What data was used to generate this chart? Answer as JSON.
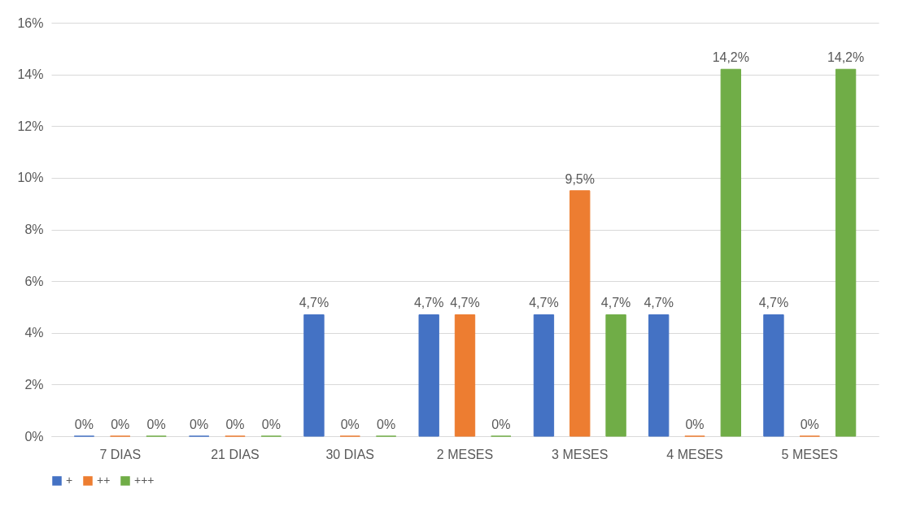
{
  "chart_data": {
    "type": "bar",
    "categories": [
      "7 DIAS",
      "21 DIAS",
      "30 DIAS",
      "2 MESES",
      "3 MESES",
      "4 MESES",
      "5 MESES"
    ],
    "series": [
      {
        "name": "+",
        "color": "#4472c4",
        "values": [
          0,
          0,
          4.7,
          4.7,
          4.7,
          4.7,
          4.7
        ],
        "value_labels": [
          "0%",
          "0%",
          "4,7%",
          "4,7%",
          "4,7%",
          "4,7%",
          "4,7%"
        ]
      },
      {
        "name": "++",
        "color": "#ed7d31",
        "values": [
          0,
          0,
          0,
          4.7,
          9.5,
          0,
          0
        ],
        "value_labels": [
          "0%",
          "0%",
          "0%",
          "4,7%",
          "9,5%",
          "0%",
          "0%"
        ]
      },
      {
        "name": "+++",
        "color": "#70ad47",
        "values": [
          0,
          0,
          0,
          0,
          4.7,
          14.2,
          14.2
        ],
        "value_labels": [
          "0%",
          "0%",
          "0%",
          "0%",
          "4,7%",
          "14,2%",
          "14,2%"
        ]
      }
    ],
    "ylim": [
      0,
      16
    ],
    "yticks": [
      {
        "value": 0,
        "label": "0%"
      },
      {
        "value": 2,
        "label": "2%"
      },
      {
        "value": 4,
        "label": "4%"
      },
      {
        "value": 6,
        "label": "6%"
      },
      {
        "value": 8,
        "label": "8%"
      },
      {
        "value": 10,
        "label": "10%"
      },
      {
        "value": 12,
        "label": "12%"
      },
      {
        "value": 14,
        "label": "14%"
      },
      {
        "value": 16,
        "label": "16%"
      }
    ],
    "grid": "y",
    "legend": "bottom"
  }
}
